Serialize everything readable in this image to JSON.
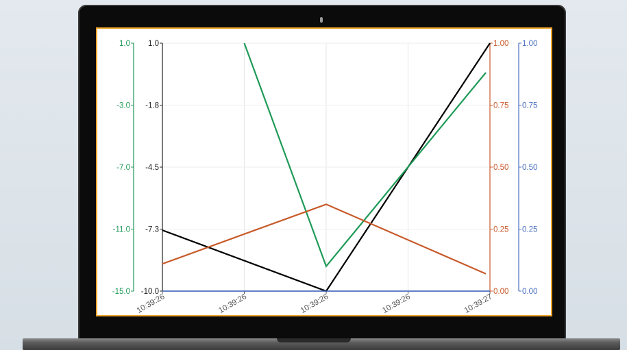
{
  "chart_data": {
    "type": "line",
    "x_categories": [
      "10:39:26",
      "10:39:26",
      "10:39:26",
      "10:39:26",
      "10:39:27"
    ],
    "x_positions": [
      0,
      1,
      2,
      3,
      4
    ],
    "grid": true,
    "series": [
      {
        "color": "#000000",
        "axis": "left-inner",
        "ylim": [
          -10.0,
          1.0
        ],
        "ticks": [
          "1.0",
          "-1.8",
          "-4.5",
          "-7.3",
          "-10.0"
        ],
        "tick_color": "#222222",
        "x": [
          0,
          2,
          4
        ],
        "values": [
          -7.3,
          -10.0,
          1.0
        ]
      },
      {
        "color": "#1e9a57",
        "axis": "left-outer",
        "ylim": [
          -15.0,
          1.0
        ],
        "ticks": [
          "1.0",
          "-3.0",
          "-7.0",
          "-11.0",
          "-15.0"
        ],
        "tick_color": "#1e9a57",
        "x": [
          1,
          2,
          3.95
        ],
        "values": [
          1.0,
          -13.4,
          -0.9
        ]
      },
      {
        "color": "#c85a2a",
        "axis": "right-inner",
        "ylim": [
          0.0,
          1.0
        ],
        "ticks": [
          "1.00",
          "0.75",
          "0.50",
          "0.25",
          "0.00"
        ],
        "tick_color": "#c85a2a",
        "x": [
          0,
          2,
          3.95
        ],
        "values": [
          0.11,
          0.35,
          0.07
        ]
      },
      {
        "color": "#4a6fc0",
        "axis": "right-outer",
        "ylim": [
          0.0,
          1.0
        ],
        "ticks": [
          "1.00",
          "0.75",
          "0.50",
          "0.25",
          "0.00"
        ],
        "tick_color": "#4a6fc0",
        "x": [
          0,
          4
        ],
        "values": [
          0.0,
          0.0
        ]
      }
    ]
  }
}
